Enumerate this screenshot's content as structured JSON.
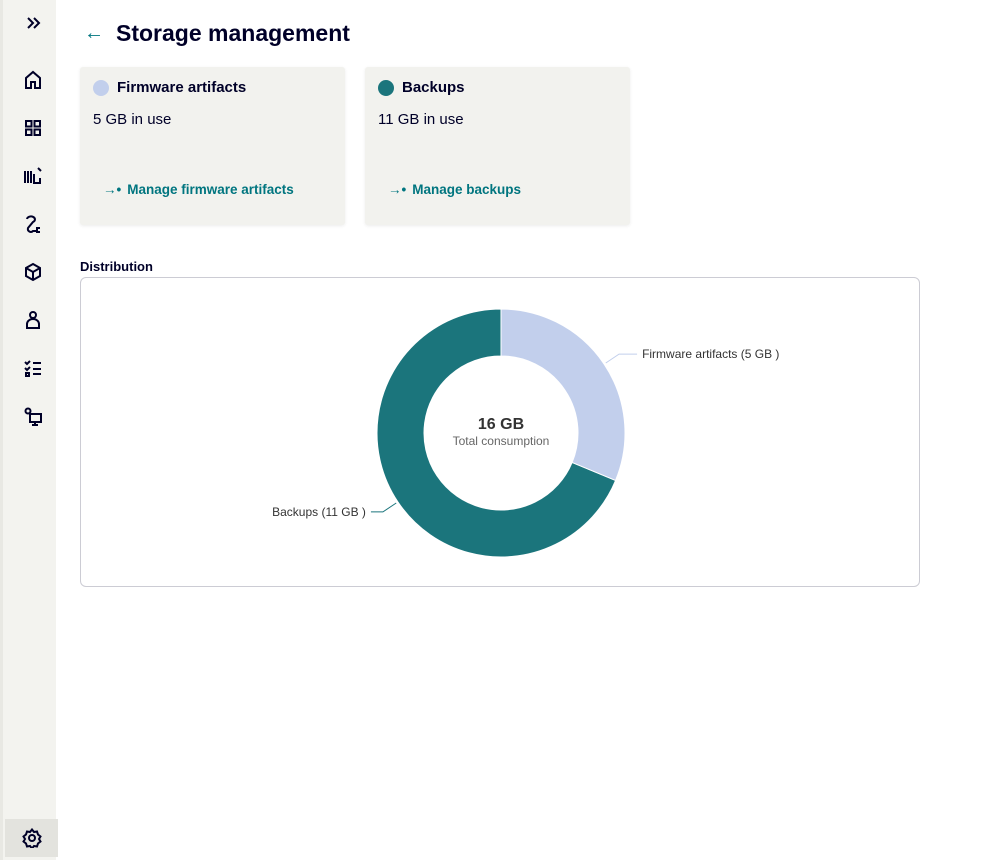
{
  "sidebar": {
    "items": [
      {
        "name": "expand",
        "icon": "double-chevron-right-icon"
      },
      {
        "name": "home",
        "icon": "home-icon"
      },
      {
        "name": "dashboard",
        "icon": "grid-icon"
      },
      {
        "name": "library",
        "icon": "library-edit-icon"
      },
      {
        "name": "connections",
        "icon": "plug-icon"
      },
      {
        "name": "packages",
        "icon": "cube-icon"
      },
      {
        "name": "users",
        "icon": "user-icon"
      },
      {
        "name": "tasks",
        "icon": "checklist-icon"
      },
      {
        "name": "device-settings",
        "icon": "monitor-gear-icon"
      },
      {
        "name": "settings",
        "icon": "gear-icon"
      }
    ]
  },
  "header": {
    "title": "Storage management",
    "back_icon": "arrow-left-icon"
  },
  "cards": [
    {
      "title": "Firmware artifacts",
      "usage": "5 GB in use",
      "link": "Manage firmware artifacts",
      "color": "#c2cfec"
    },
    {
      "title": "Backups",
      "usage": "11 GB in use",
      "link": "Manage backups",
      "color": "#1b757c"
    }
  ],
  "distribution_label": "Distribution",
  "chart_data": {
    "type": "pie",
    "variant": "donut",
    "center_value": "16 GB",
    "center_label": "Total consumption",
    "slices": [
      {
        "label": "Firmware artifacts (5 GB )",
        "value": 5,
        "color": "#c2cfec"
      },
      {
        "label": "Backups (11 GB )",
        "value": 11,
        "color": "#1b757c"
      }
    ]
  }
}
